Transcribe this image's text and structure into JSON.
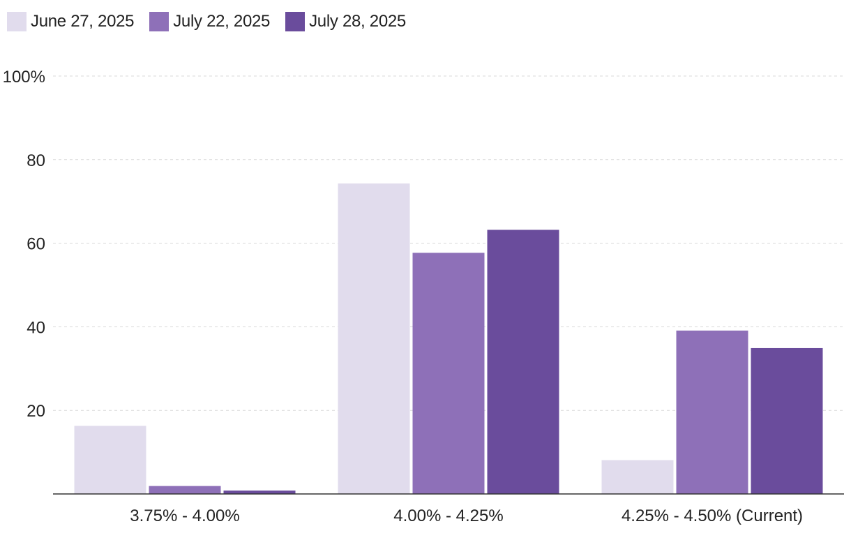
{
  "chart_data": {
    "type": "bar",
    "categories": [
      "3.75% - 4.00%",
      "4.00% - 4.25%",
      "4.25% - 4.50% (Current)"
    ],
    "series": [
      {
        "name": "June 27, 2025",
        "color": "#e1dced",
        "values": [
          16.3,
          74.3,
          8.1
        ]
      },
      {
        "name": "July 22, 2025",
        "color": "#8e70b8",
        "values": [
          1.9,
          57.7,
          39.1
        ]
      },
      {
        "name": "July 28, 2025",
        "color": "#6a4c9c",
        "values": [
          0.8,
          63.2,
          34.9
        ]
      }
    ],
    "y_ticks": [
      {
        "value": 100,
        "label": "100%"
      },
      {
        "value": 80,
        "label": "80"
      },
      {
        "value": 60,
        "label": "60"
      },
      {
        "value": 40,
        "label": "40"
      },
      {
        "value": 20,
        "label": "20"
      }
    ],
    "ylim": [
      0,
      100
    ],
    "grid": true,
    "legend_position": "top-left"
  }
}
